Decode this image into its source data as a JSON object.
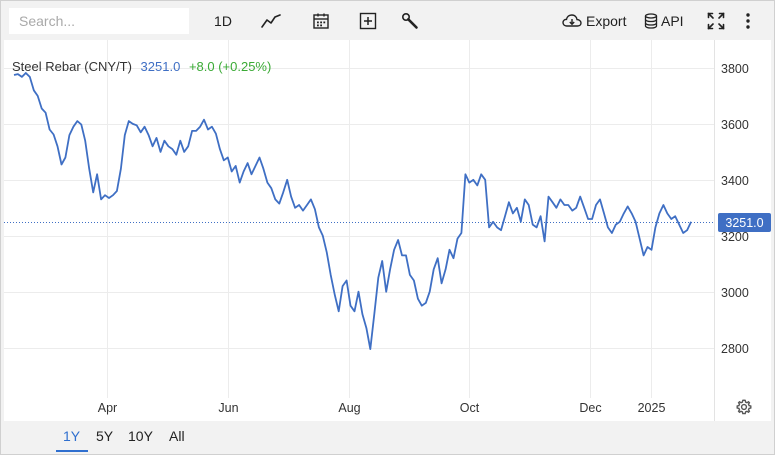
{
  "toolbar": {
    "search_placeholder": "Search...",
    "interval_label": "1D",
    "export_label": "Export",
    "api_label": "API",
    "icons": [
      "line-chart-icon",
      "calendar-icon",
      "add-indicator-icon",
      "wrench-icon",
      "cloud-download-icon",
      "database-icon",
      "fullscreen-icon",
      "more-vertical-icon"
    ]
  },
  "legend": {
    "name": "Steel Rebar (CNY/T)",
    "last_value": "3251.0",
    "change": "+8.0 (+0.25%)"
  },
  "price_tag": "3251.0",
  "ranges": [
    {
      "label": "1Y",
      "active": true
    },
    {
      "label": "5Y",
      "active": false
    },
    {
      "label": "10Y",
      "active": false
    },
    {
      "label": "All",
      "active": false
    }
  ],
  "colors": {
    "line": "#3f6fc4",
    "tag_bg": "#3f6fc4",
    "change_up": "#3aaa35",
    "accent": "#2f6fcf"
  },
  "chart_data": {
    "type": "line",
    "title": "Steel Rebar (CNY/T)",
    "xlabel": "",
    "ylabel": "",
    "x_ticks": [
      {
        "label": "Apr",
        "date": "2024-04-01"
      },
      {
        "label": "Jun",
        "date": "2024-06-01"
      },
      {
        "label": "Aug",
        "date": "2024-08-01"
      },
      {
        "label": "Oct",
        "date": "2024-10-01"
      },
      {
        "label": "Dec",
        "date": "2024-12-01"
      },
      {
        "label": "2025",
        "date": "2025-01-01"
      }
    ],
    "y_ticks": [
      2800,
      3000,
      3200,
      3400,
      3600,
      3800
    ],
    "xlim": [
      "2024-02-12",
      "2025-01-25"
    ],
    "ylim": [
      2620,
      3900
    ],
    "current_value": 3251.0,
    "grid": true,
    "series": [
      {
        "name": "Steel Rebar (CNY/T)",
        "points": [
          [
            "2024-02-14",
            3775
          ],
          [
            "2024-02-16",
            3778
          ],
          [
            "2024-02-18",
            3768
          ],
          [
            "2024-02-20",
            3782
          ],
          [
            "2024-02-22",
            3768
          ],
          [
            "2024-02-24",
            3720
          ],
          [
            "2024-02-26",
            3700
          ],
          [
            "2024-02-28",
            3655
          ],
          [
            "2024-03-01",
            3640
          ],
          [
            "2024-03-03",
            3580
          ],
          [
            "2024-03-05",
            3562
          ],
          [
            "2024-03-07",
            3520
          ],
          [
            "2024-03-09",
            3455
          ],
          [
            "2024-03-11",
            3480
          ],
          [
            "2024-03-13",
            3560
          ],
          [
            "2024-03-15",
            3590
          ],
          [
            "2024-03-17",
            3610
          ],
          [
            "2024-03-19",
            3598
          ],
          [
            "2024-03-21",
            3540
          ],
          [
            "2024-03-23",
            3440
          ],
          [
            "2024-03-25",
            3355
          ],
          [
            "2024-03-27",
            3420
          ],
          [
            "2024-03-29",
            3330
          ],
          [
            "2024-03-31",
            3345
          ],
          [
            "2024-04-02",
            3335
          ],
          [
            "2024-04-04",
            3345
          ],
          [
            "2024-04-06",
            3360
          ],
          [
            "2024-04-08",
            3440
          ],
          [
            "2024-04-10",
            3560
          ],
          [
            "2024-04-12",
            3610
          ],
          [
            "2024-04-14",
            3600
          ],
          [
            "2024-04-16",
            3595
          ],
          [
            "2024-04-18",
            3570
          ],
          [
            "2024-04-20",
            3590
          ],
          [
            "2024-04-22",
            3560
          ],
          [
            "2024-04-24",
            3520
          ],
          [
            "2024-04-26",
            3550
          ],
          [
            "2024-04-28",
            3500
          ],
          [
            "2024-04-30",
            3540
          ],
          [
            "2024-05-02",
            3520
          ],
          [
            "2024-05-04",
            3510
          ],
          [
            "2024-05-06",
            3490
          ],
          [
            "2024-05-08",
            3540
          ],
          [
            "2024-05-10",
            3500
          ],
          [
            "2024-05-12",
            3520
          ],
          [
            "2024-05-14",
            3575
          ],
          [
            "2024-05-16",
            3575
          ],
          [
            "2024-05-18",
            3590
          ],
          [
            "2024-05-20",
            3615
          ],
          [
            "2024-05-22",
            3580
          ],
          [
            "2024-05-24",
            3590
          ],
          [
            "2024-05-26",
            3565
          ],
          [
            "2024-05-28",
            3510
          ],
          [
            "2024-05-30",
            3470
          ],
          [
            "2024-06-01",
            3480
          ],
          [
            "2024-06-03",
            3430
          ],
          [
            "2024-06-05",
            3450
          ],
          [
            "2024-06-07",
            3390
          ],
          [
            "2024-06-09",
            3430
          ],
          [
            "2024-06-11",
            3460
          ],
          [
            "2024-06-13",
            3420
          ],
          [
            "2024-06-15",
            3450
          ],
          [
            "2024-06-17",
            3480
          ],
          [
            "2024-06-19",
            3440
          ],
          [
            "2024-06-21",
            3390
          ],
          [
            "2024-06-23",
            3370
          ],
          [
            "2024-06-25",
            3330
          ],
          [
            "2024-06-27",
            3315
          ],
          [
            "2024-06-29",
            3355
          ],
          [
            "2024-07-01",
            3400
          ],
          [
            "2024-07-03",
            3340
          ],
          [
            "2024-07-05",
            3300
          ],
          [
            "2024-07-07",
            3310
          ],
          [
            "2024-07-09",
            3290
          ],
          [
            "2024-07-11",
            3310
          ],
          [
            "2024-07-13",
            3330
          ],
          [
            "2024-07-15",
            3295
          ],
          [
            "2024-07-17",
            3230
          ],
          [
            "2024-07-19",
            3200
          ],
          [
            "2024-07-21",
            3140
          ],
          [
            "2024-07-23",
            3060
          ],
          [
            "2024-07-25",
            2990
          ],
          [
            "2024-07-27",
            2930
          ],
          [
            "2024-07-29",
            3020
          ],
          [
            "2024-07-31",
            3040
          ],
          [
            "2024-08-02",
            2950
          ],
          [
            "2024-08-04",
            2930
          ],
          [
            "2024-08-06",
            3000
          ],
          [
            "2024-08-08",
            2920
          ],
          [
            "2024-08-10",
            2870
          ],
          [
            "2024-08-12",
            2795
          ],
          [
            "2024-08-14",
            2920
          ],
          [
            "2024-08-16",
            3050
          ],
          [
            "2024-08-18",
            3110
          ],
          [
            "2024-08-20",
            3000
          ],
          [
            "2024-08-22",
            3080
          ],
          [
            "2024-08-24",
            3150
          ],
          [
            "2024-08-26",
            3185
          ],
          [
            "2024-08-28",
            3130
          ],
          [
            "2024-08-30",
            3130
          ],
          [
            "2024-09-01",
            3060
          ],
          [
            "2024-09-03",
            3040
          ],
          [
            "2024-09-05",
            2975
          ],
          [
            "2024-09-07",
            2950
          ],
          [
            "2024-09-09",
            2960
          ],
          [
            "2024-09-11",
            3000
          ],
          [
            "2024-09-13",
            3080
          ],
          [
            "2024-09-15",
            3120
          ],
          [
            "2024-09-17",
            3030
          ],
          [
            "2024-09-19",
            3080
          ],
          [
            "2024-09-21",
            3150
          ],
          [
            "2024-09-23",
            3120
          ],
          [
            "2024-09-25",
            3190
          ],
          [
            "2024-09-27",
            3210
          ],
          [
            "2024-09-29",
            3420
          ],
          [
            "2024-10-01",
            3390
          ],
          [
            "2024-10-03",
            3400
          ],
          [
            "2024-10-05",
            3380
          ],
          [
            "2024-10-07",
            3420
          ],
          [
            "2024-10-09",
            3400
          ],
          [
            "2024-10-11",
            3230
          ],
          [
            "2024-10-13",
            3250
          ],
          [
            "2024-10-15",
            3230
          ],
          [
            "2024-10-17",
            3220
          ],
          [
            "2024-10-19",
            3270
          ],
          [
            "2024-10-21",
            3320
          ],
          [
            "2024-10-23",
            3280
          ],
          [
            "2024-10-25",
            3300
          ],
          [
            "2024-10-27",
            3250
          ],
          [
            "2024-10-29",
            3330
          ],
          [
            "2024-10-31",
            3310
          ],
          [
            "2024-11-02",
            3240
          ],
          [
            "2024-11-04",
            3230
          ],
          [
            "2024-11-06",
            3270
          ],
          [
            "2024-11-08",
            3180
          ],
          [
            "2024-11-10",
            3340
          ],
          [
            "2024-11-12",
            3320
          ],
          [
            "2024-11-14",
            3300
          ],
          [
            "2024-11-16",
            3330
          ],
          [
            "2024-11-18",
            3310
          ],
          [
            "2024-11-20",
            3310
          ],
          [
            "2024-11-22",
            3290
          ],
          [
            "2024-11-24",
            3300
          ],
          [
            "2024-11-26",
            3340
          ],
          [
            "2024-11-28",
            3300
          ],
          [
            "2024-11-30",
            3260
          ],
          [
            "2024-12-02",
            3260
          ],
          [
            "2024-12-04",
            3310
          ],
          [
            "2024-12-06",
            3330
          ],
          [
            "2024-12-08",
            3280
          ],
          [
            "2024-12-10",
            3230
          ],
          [
            "2024-12-12",
            3210
          ],
          [
            "2024-12-14",
            3240
          ],
          [
            "2024-12-16",
            3250
          ],
          [
            "2024-12-18",
            3280
          ],
          [
            "2024-12-20",
            3305
          ],
          [
            "2024-12-22",
            3280
          ],
          [
            "2024-12-24",
            3250
          ],
          [
            "2024-12-26",
            3190
          ],
          [
            "2024-12-28",
            3130
          ],
          [
            "2024-12-30",
            3160
          ],
          [
            "2025-01-01",
            3150
          ],
          [
            "2025-01-03",
            3230
          ],
          [
            "2025-01-05",
            3280
          ],
          [
            "2025-01-07",
            3310
          ],
          [
            "2025-01-09",
            3280
          ],
          [
            "2025-01-11",
            3260
          ],
          [
            "2025-01-13",
            3270
          ],
          [
            "2025-01-15",
            3240
          ],
          [
            "2025-01-17",
            3210
          ],
          [
            "2025-01-19",
            3220
          ],
          [
            "2025-01-21",
            3250
          ]
        ]
      }
    ]
  }
}
